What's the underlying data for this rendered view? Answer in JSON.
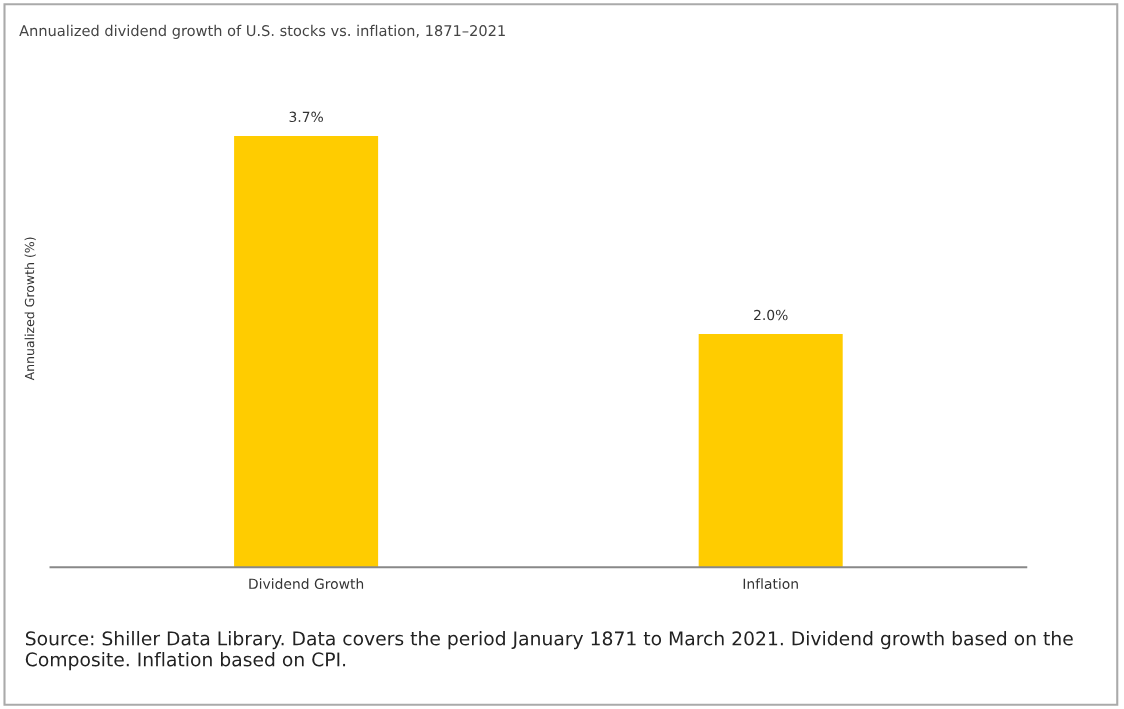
{
  "chart_data": {
    "type": "bar",
    "title": "Annualized dividend growth of U.S. stocks vs. inflation, 1871–2021",
    "ylabel": "Annualized Growth (%)",
    "categories": [
      "Dividend Growth",
      "Inflation"
    ],
    "values": [
      3.7,
      2.0
    ],
    "value_labels": [
      "3.7%",
      "2.0%"
    ],
    "color": "#ffcc00",
    "grid": false,
    "annotations": [
      "Source: Shiller Data Library. Data covers the period January 1871 to March 2021. Dividend growth based on the Composite. Inflation based on CPI."
    ]
  }
}
